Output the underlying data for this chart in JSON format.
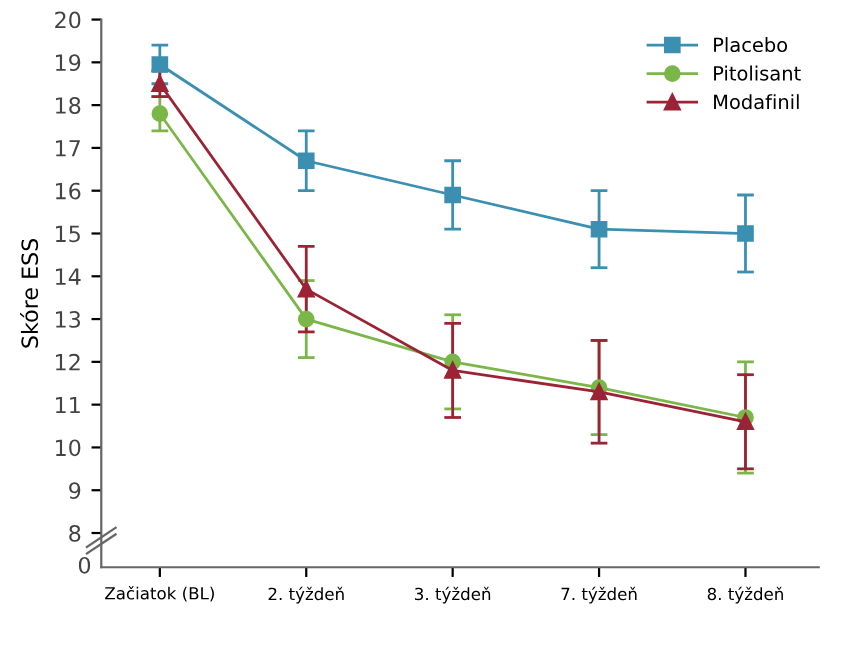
{
  "chart_data": {
    "type": "line",
    "ylabel": "Skóre ESS",
    "categories": [
      "Začiatok (BL)",
      "2. týždeň",
      "3. týždeň",
      "7. týždeň",
      "8. týždeň"
    ],
    "series": [
      {
        "name": "Placebo",
        "color": "#3b8fb0",
        "marker": "square",
        "values": [
          18.95,
          16.7,
          15.9,
          15.1,
          15.0
        ],
        "errors": [
          0.45,
          0.7,
          0.8,
          0.9,
          0.9
        ]
      },
      {
        "name": "Pitolisant",
        "color": "#7ab648",
        "marker": "circle",
        "values": [
          17.8,
          13.0,
          12.0,
          11.4,
          10.7
        ],
        "errors": [
          0.4,
          0.9,
          1.1,
          1.1,
          1.3
        ]
      },
      {
        "name": "Modafinil",
        "color": "#9b2335",
        "marker": "triangle",
        "values": [
          18.5,
          13.7,
          11.8,
          11.3,
          10.6
        ],
        "errors": [
          0.3,
          1.0,
          1.1,
          1.2,
          1.1
        ]
      }
    ],
    "ylim": [
      7.2,
      20
    ],
    "yticks": [
      8,
      9,
      10,
      11,
      12,
      13,
      14,
      15,
      16,
      17,
      18,
      19,
      20
    ],
    "annotations": [
      "0"
    ],
    "grid": false,
    "legend": "top right",
    "line_style": "solid"
  }
}
